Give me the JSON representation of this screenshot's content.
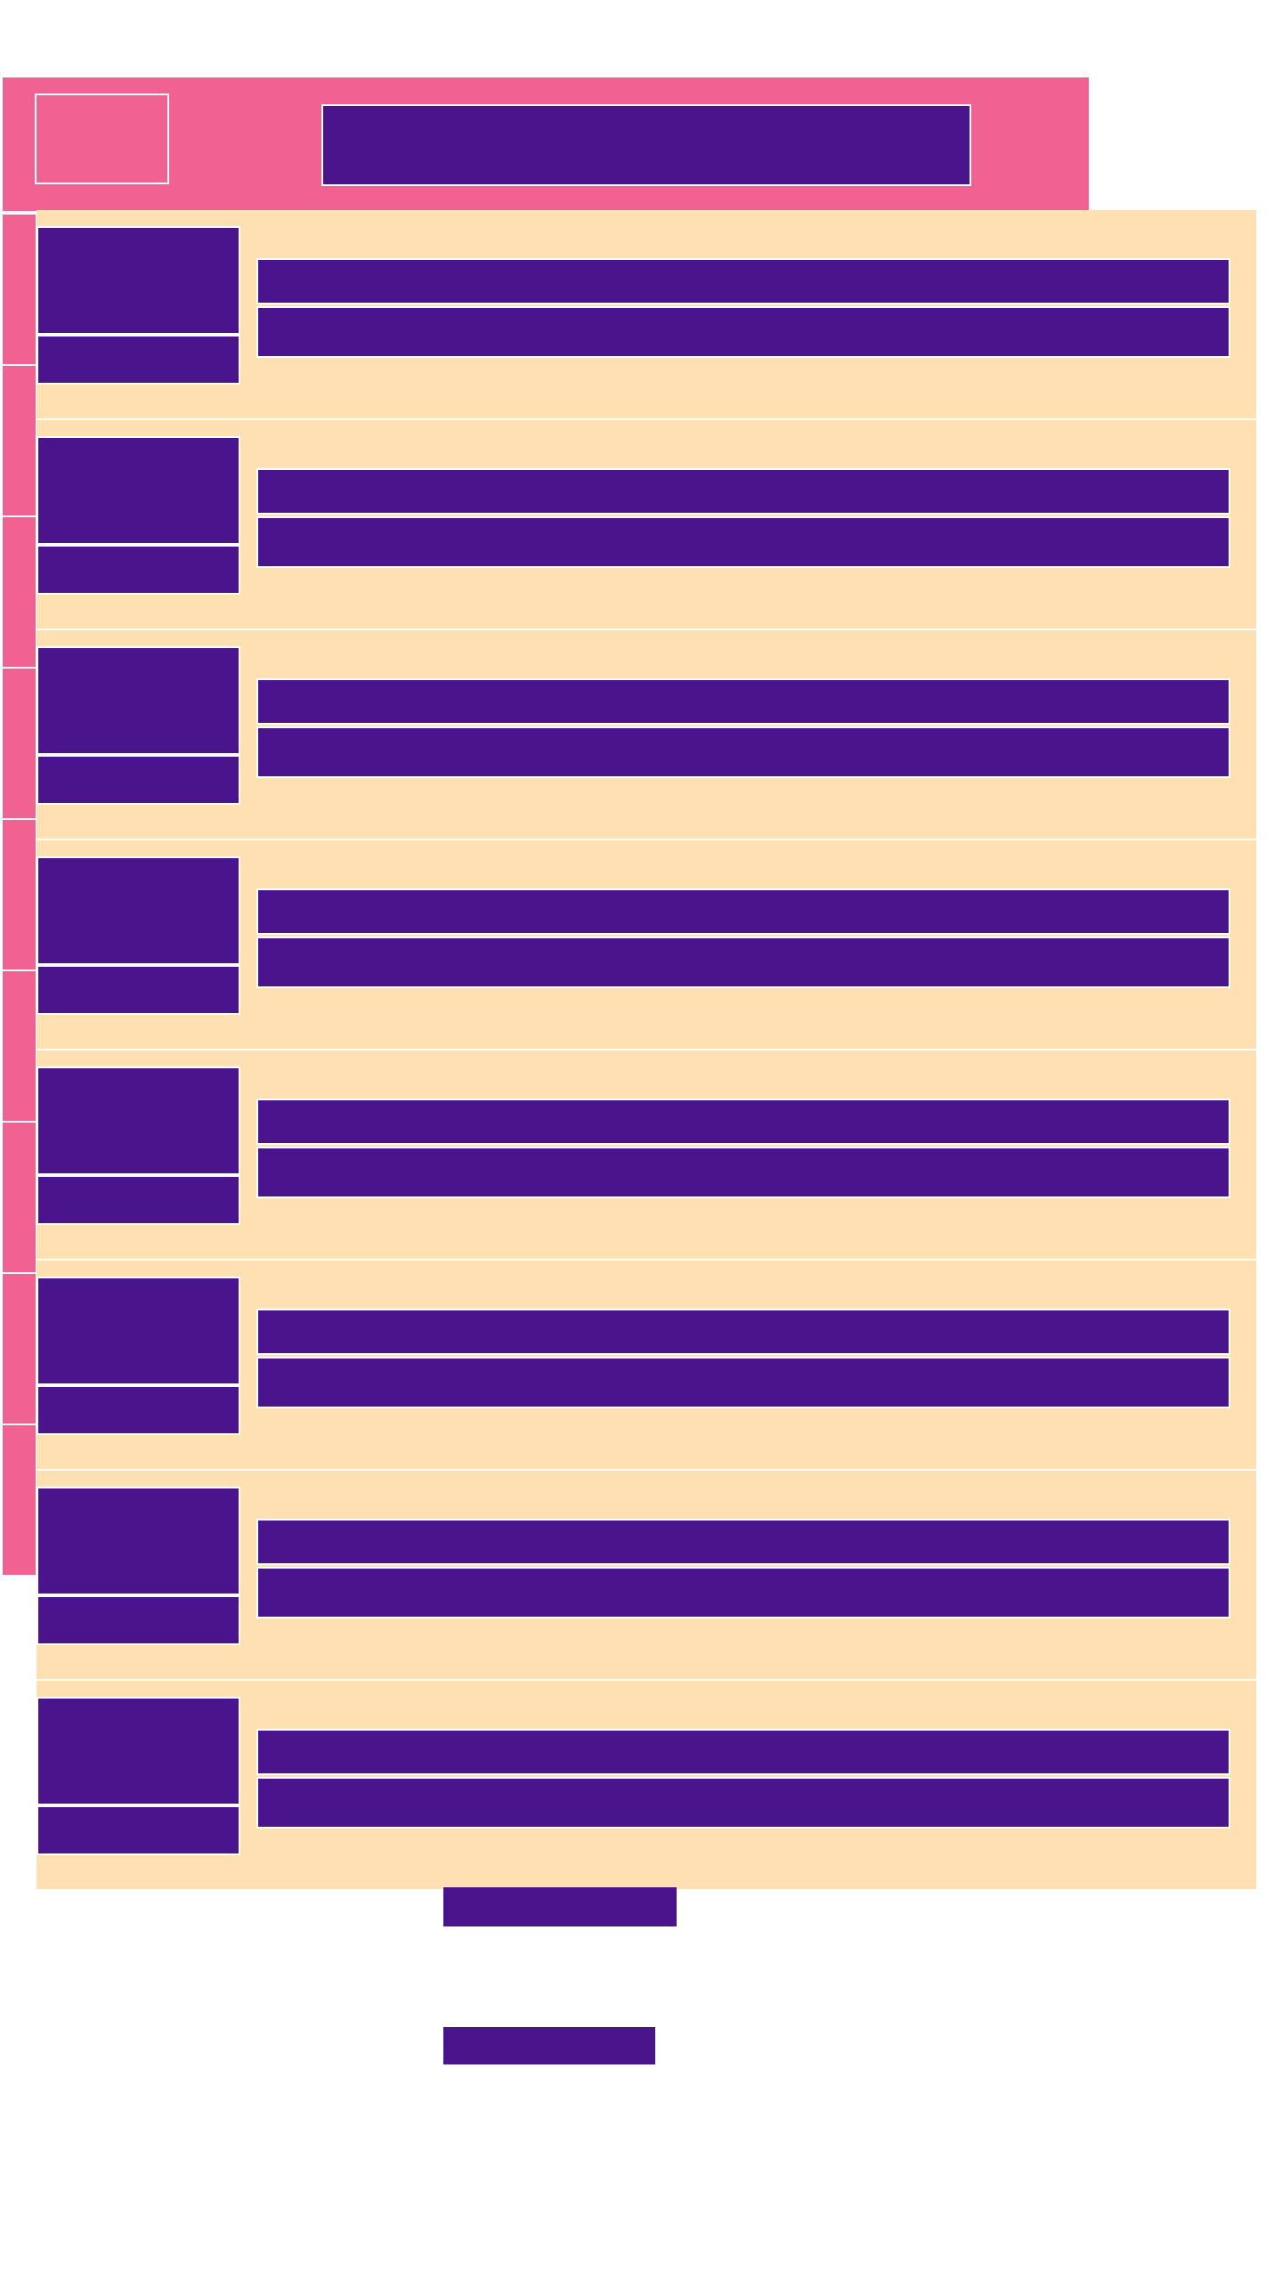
{
  "colors": {
    "header": "#f06292",
    "card_background": "#ffe0b2",
    "placeholder_block": "#4a148c",
    "divider": "#ffffff"
  },
  "cards": [
    {
      "id": 1
    },
    {
      "id": 2
    },
    {
      "id": 3
    },
    {
      "id": 4
    },
    {
      "id": 5
    },
    {
      "id": 6
    },
    {
      "id": 7
    },
    {
      "id": 8
    }
  ],
  "rail_segments": 9
}
